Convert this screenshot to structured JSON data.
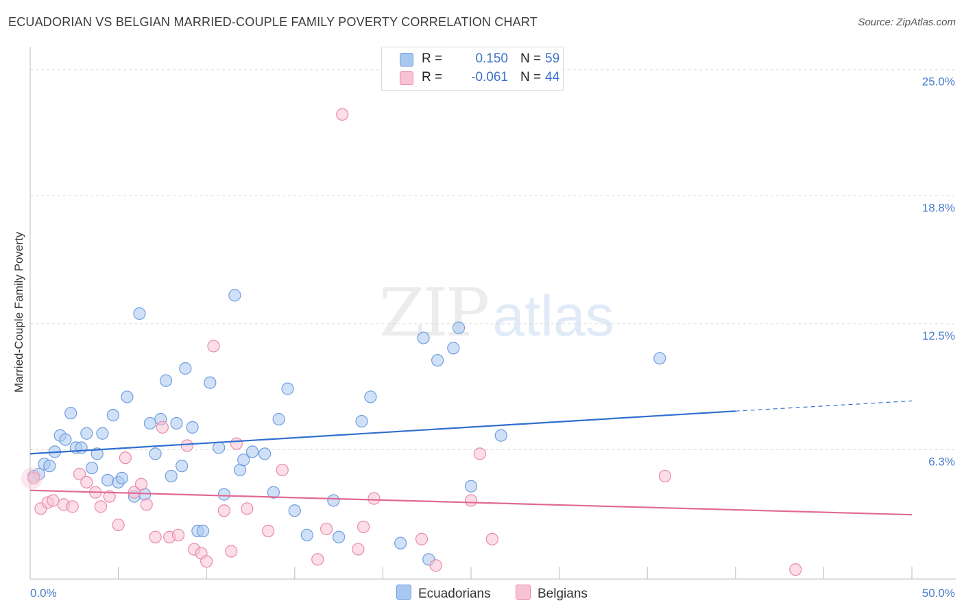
{
  "title": "ECUADORIAN VS BELGIAN MARRIED-COUPLE FAMILY POVERTY CORRELATION CHART",
  "source": "Source: ZipAtlas.com",
  "watermark": {
    "zip": "ZIP",
    "atlas": "atlas"
  },
  "legend": {
    "rows": [
      {
        "r_label": "R =",
        "r_value": "0.150",
        "n_label": "N =",
        "n_value": "59",
        "color": "#a9c8f0",
        "border": "#6f9ee0"
      },
      {
        "r_label": "R =",
        "r_value": "-0.061",
        "n_label": "N =",
        "n_value": "44",
        "color": "#f7c3d3",
        "border": "#ea8aa8"
      }
    ]
  },
  "bottom_legend": [
    {
      "label": "Ecuadorians",
      "color": "#a9c8f0"
    },
    {
      "label": "Belgians",
      "color": "#f7c3d3"
    }
  ],
  "chart_data": {
    "type": "scatter",
    "title": "ECUADORIAN VS BELGIAN MARRIED-COUPLE FAMILY POVERTY CORRELATION CHART",
    "xlabel": "",
    "ylabel": "Married-Couple Family Poverty",
    "xlim": [
      0,
      50
    ],
    "ylim": [
      0,
      25.8
    ],
    "x_tick_labels": [
      "0.0%",
      "50.0%"
    ],
    "y_ticks": [
      6.3,
      12.5,
      18.8,
      25.0
    ],
    "y_tick_labels": [
      "6.3%",
      "12.5%",
      "18.8%",
      "25.0%"
    ],
    "grid": "horizontal dashed",
    "legend_position": "top-center",
    "series": [
      {
        "name": "Ecuadorians",
        "color": "#6f9ee0",
        "fill": "#a9c8f0",
        "trend": {
          "x0": 0,
          "y0": 6.1,
          "x1": 40,
          "y1": 8.2,
          "dashed_to_x": 50,
          "dashed_to_y": 8.7
        },
        "points": [
          [
            0.2,
            5.0
          ],
          [
            0.5,
            5.1
          ],
          [
            0.8,
            5.6
          ],
          [
            1.1,
            5.5
          ],
          [
            1.4,
            6.2
          ],
          [
            1.7,
            7.0
          ],
          [
            2.0,
            6.8
          ],
          [
            2.3,
            8.1
          ],
          [
            2.6,
            6.4
          ],
          [
            2.9,
            6.4
          ],
          [
            3.2,
            7.1
          ],
          [
            3.5,
            5.4
          ],
          [
            3.8,
            6.1
          ],
          [
            4.1,
            7.1
          ],
          [
            4.4,
            4.8
          ],
          [
            4.7,
            8.0
          ],
          [
            5.0,
            4.7
          ],
          [
            5.2,
            4.9
          ],
          [
            5.5,
            8.9
          ],
          [
            5.9,
            4.0
          ],
          [
            6.2,
            13.0
          ],
          [
            6.5,
            4.1
          ],
          [
            6.8,
            7.6
          ],
          [
            7.1,
            6.1
          ],
          [
            7.4,
            7.8
          ],
          [
            7.7,
            9.7
          ],
          [
            8.0,
            5.0
          ],
          [
            8.3,
            7.6
          ],
          [
            8.6,
            5.5
          ],
          [
            8.8,
            10.3
          ],
          [
            9.2,
            7.4
          ],
          [
            9.5,
            2.3
          ],
          [
            9.8,
            2.3
          ],
          [
            10.2,
            9.6
          ],
          [
            10.7,
            6.4
          ],
          [
            11.0,
            4.1
          ],
          [
            11.6,
            13.9
          ],
          [
            11.9,
            5.3
          ],
          [
            12.1,
            5.8
          ],
          [
            12.6,
            6.2
          ],
          [
            13.3,
            6.1
          ],
          [
            13.8,
            4.2
          ],
          [
            14.1,
            7.8
          ],
          [
            14.6,
            9.3
          ],
          [
            15.0,
            3.3
          ],
          [
            15.7,
            2.1
          ],
          [
            17.2,
            3.8
          ],
          [
            17.5,
            2.0
          ],
          [
            18.8,
            7.7
          ],
          [
            19.3,
            8.9
          ],
          [
            21.0,
            1.7
          ],
          [
            22.3,
            11.8
          ],
          [
            22.6,
            0.9
          ],
          [
            23.1,
            10.7
          ],
          [
            24.0,
            11.3
          ],
          [
            24.3,
            12.3
          ],
          [
            25.0,
            4.5
          ],
          [
            26.7,
            7.0
          ],
          [
            35.7,
            10.8
          ]
        ]
      },
      {
        "name": "Belgians",
        "color": "#ea8aa8",
        "fill": "#f7c3d3",
        "trend": {
          "x0": 0,
          "y0": 4.3,
          "x1": 50,
          "y1": 3.1
        },
        "points": [
          [
            0.2,
            4.9
          ],
          [
            0.6,
            3.4
          ],
          [
            1.0,
            3.7
          ],
          [
            1.3,
            3.8
          ],
          [
            1.9,
            3.6
          ],
          [
            2.4,
            3.5
          ],
          [
            2.8,
            5.1
          ],
          [
            3.2,
            4.7
          ],
          [
            3.7,
            4.2
          ],
          [
            4.0,
            3.5
          ],
          [
            4.5,
            4.0
          ],
          [
            5.0,
            2.6
          ],
          [
            5.4,
            5.9
          ],
          [
            5.9,
            4.2
          ],
          [
            6.3,
            4.6
          ],
          [
            6.6,
            3.6
          ],
          [
            7.1,
            2.0
          ],
          [
            7.5,
            7.4
          ],
          [
            7.9,
            2.0
          ],
          [
            8.4,
            2.1
          ],
          [
            8.9,
            6.5
          ],
          [
            9.3,
            1.4
          ],
          [
            9.7,
            1.2
          ],
          [
            10.0,
            0.8
          ],
          [
            10.4,
            11.4
          ],
          [
            11.0,
            3.3
          ],
          [
            11.4,
            1.3
          ],
          [
            11.7,
            6.6
          ],
          [
            12.3,
            3.4
          ],
          [
            13.5,
            2.3
          ],
          [
            14.3,
            5.3
          ],
          [
            16.3,
            0.9
          ],
          [
            16.8,
            2.4
          ],
          [
            17.7,
            22.8
          ],
          [
            18.6,
            1.4
          ],
          [
            18.9,
            2.5
          ],
          [
            19.5,
            3.9
          ],
          [
            22.2,
            1.9
          ],
          [
            23.0,
            0.6
          ],
          [
            25.0,
            3.8
          ],
          [
            25.5,
            6.1
          ],
          [
            26.2,
            1.9
          ],
          [
            36.0,
            5.0
          ],
          [
            43.4,
            0.4
          ]
        ]
      }
    ]
  }
}
